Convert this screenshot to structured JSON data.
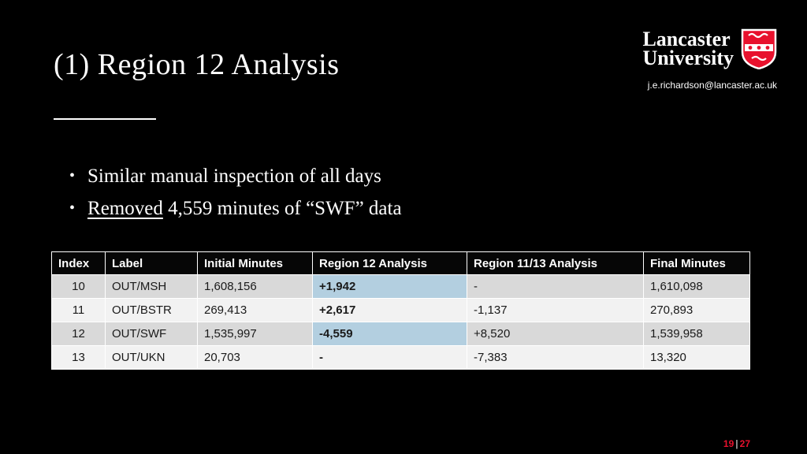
{
  "colors": {
    "background": "#000000",
    "text_white": "#ffffff",
    "lancaster_red": "#e8112d",
    "table_band_dark": "#d9d9d9",
    "table_band_light": "#f2f2f2",
    "highlight_blue": "#b3cfe0",
    "table_text": "#1a1a1a"
  },
  "header": {
    "title": "(1) Region 12 Analysis",
    "logo_line1": "Lancaster",
    "logo_line2": "University",
    "email": "j.e.richardson@lancaster.ac.uk"
  },
  "bullets": {
    "item1": "Similar manual inspection of all days",
    "item2_underlined": "Removed",
    "item2_rest": " 4,559 minutes of “SWF” data"
  },
  "table": {
    "headers": [
      "Index",
      "Label",
      "Initial Minutes",
      "Region 12 Analysis",
      "Region 11/13 Analysis",
      "Final Minutes"
    ],
    "rows": [
      {
        "cells": [
          "10",
          "OUT/MSH",
          "1,608,156",
          "+1,942",
          "-",
          "1,610,098"
        ],
        "r12_highlight": true
      },
      {
        "cells": [
          "11",
          "OUT/BSTR",
          "269,413",
          "+2,617",
          "-1,137",
          "270,893"
        ],
        "r12_highlight": false
      },
      {
        "cells": [
          "12",
          "OUT/SWF",
          "1,535,997",
          "-4,559",
          "+8,520",
          "1,539,958"
        ],
        "r12_highlight": true
      },
      {
        "cells": [
          "13",
          "OUT/UKN",
          "20,703",
          "-",
          "-7,383",
          "13,320"
        ],
        "r12_highlight": false
      }
    ]
  },
  "footer": {
    "page_current": "19",
    "separator": "|",
    "page_total": "27"
  }
}
